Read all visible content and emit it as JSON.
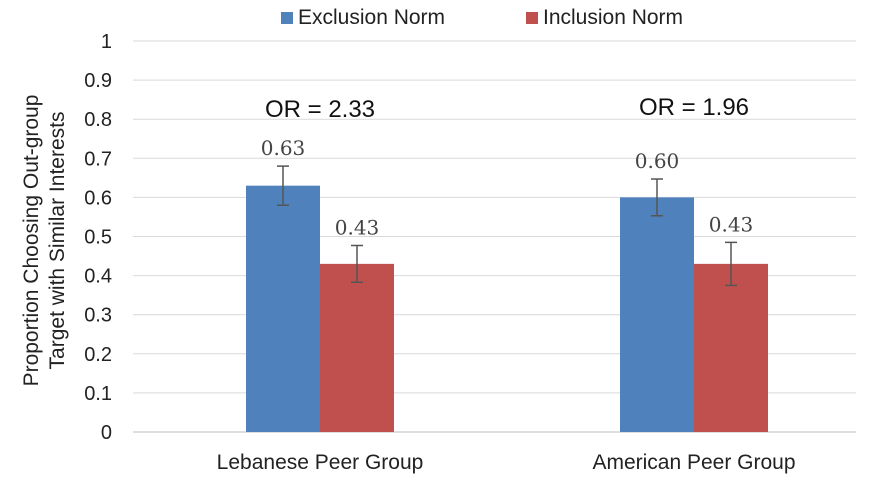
{
  "chart_data": {
    "type": "bar",
    "categories": [
      "Lebanese Peer Group",
      "American Peer Group"
    ],
    "series": [
      {
        "name": "Exclusion Norm",
        "color": "#4f81bd",
        "values": [
          0.63,
          0.6
        ],
        "error": [
          0.05,
          0.047
        ],
        "labels": [
          "0.63",
          "0.60"
        ]
      },
      {
        "name": "Inclusion Norm",
        "color": "#c0504d",
        "values": [
          0.43,
          0.43
        ],
        "error": [
          0.047,
          0.055
        ],
        "labels": [
          "0.43",
          "0.43"
        ]
      }
    ],
    "ylabel_lines": [
      "Proportion Choosing Out-group",
      "Target with Similar Interests"
    ],
    "ylim": [
      0,
      1
    ],
    "yticks": [
      "0",
      "0.1",
      "0.2",
      "0.3",
      "0.4",
      "0.5",
      "0.6",
      "0.7",
      "0.8",
      "0.9",
      "1"
    ],
    "annotations": [
      "OR = 2.33",
      "OR = 1.96"
    ],
    "legend_position": "top",
    "grid": true
  }
}
